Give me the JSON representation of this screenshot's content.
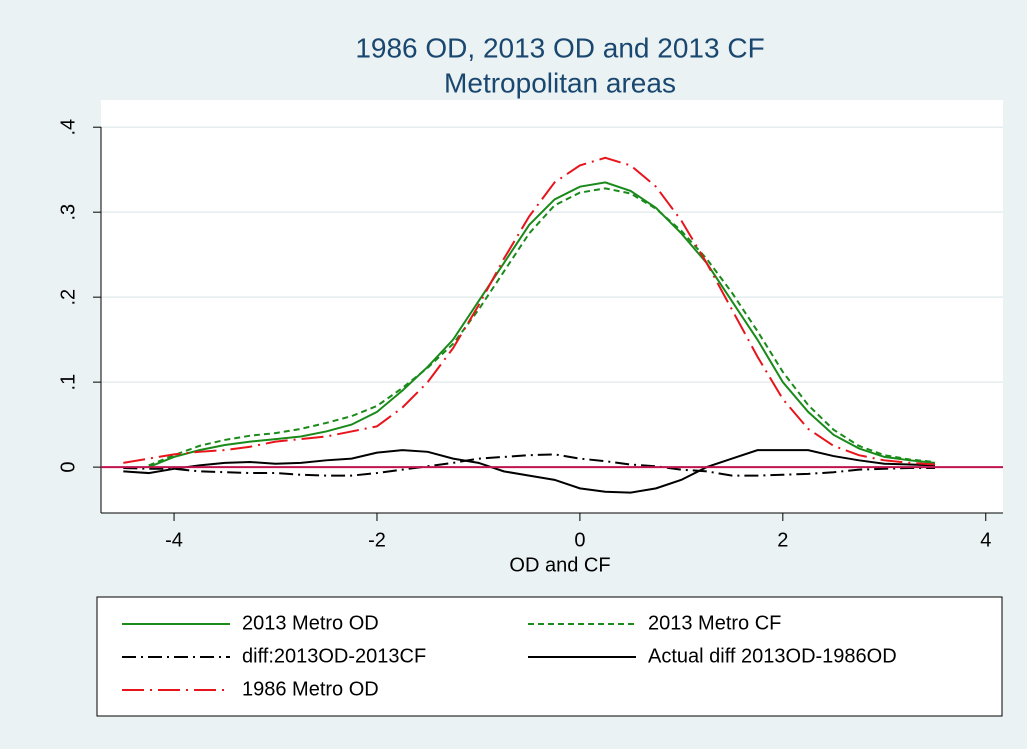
{
  "chart_data": {
    "type": "line",
    "title": "1986 OD, 2013 OD and 2013 CF",
    "subtitle": "Metropolitan areas",
    "x_label": "OD and CF",
    "x": [
      -4.5,
      -4.25,
      -4,
      -3.75,
      -3.5,
      -3.25,
      -3,
      -2.75,
      -2.5,
      -2.25,
      -2,
      -1.75,
      -1.5,
      -1.25,
      -1,
      -0.75,
      -0.5,
      -0.25,
      0,
      0.25,
      0.5,
      0.75,
      1,
      1.25,
      1.5,
      1.75,
      2,
      2.25,
      2.5,
      2.75,
      3,
      3.25,
      3.5
    ],
    "series": [
      {
        "name": "2013 Metro OD",
        "color": "#1a8a1a",
        "dash": "solid",
        "values": [
          null,
          0,
          0.012,
          0.02,
          0.026,
          0.03,
          0.033,
          0.036,
          0.042,
          0.05,
          0.065,
          0.09,
          0.118,
          0.15,
          0.195,
          0.24,
          0.285,
          0.315,
          0.33,
          0.335,
          0.325,
          0.305,
          0.275,
          0.24,
          0.195,
          0.15,
          0.1,
          0.065,
          0.038,
          0.022,
          0.012,
          0.008,
          0.005
        ]
      },
      {
        "name": "2013 Metro CF",
        "color": "#1a8a1a",
        "dash": "dash",
        "values": [
          null,
          0.002,
          0.014,
          0.025,
          0.032,
          0.037,
          0.04,
          0.045,
          0.052,
          0.06,
          0.072,
          0.093,
          0.117,
          0.145,
          0.185,
          0.23,
          0.275,
          0.308,
          0.323,
          0.328,
          0.322,
          0.304,
          0.278,
          0.245,
          0.205,
          0.16,
          0.112,
          0.073,
          0.044,
          0.025,
          0.014,
          0.009,
          0.006
        ]
      },
      {
        "name": "diff:2013OD-2013CF",
        "color": "#000000",
        "dash": "dash-dot",
        "values": [
          -0.001,
          -0.002,
          -0.002,
          -0.005,
          -0.006,
          -0.007,
          -0.007,
          -0.009,
          -0.01,
          -0.01,
          -0.007,
          -0.003,
          0.001,
          0.005,
          0.01,
          0.012,
          0.014,
          0.015,
          0.01,
          0.007,
          0.003,
          0.001,
          -0.003,
          -0.005,
          -0.01,
          -0.01,
          -0.009,
          -0.008,
          -0.006,
          -0.003,
          -0.002,
          -0.001,
          -0.001
        ]
      },
      {
        "name": "Actual diff 2013OD-1986OD",
        "color": "#000000",
        "dash": "solid",
        "values": [
          -0.005,
          -0.007,
          -0.002,
          0.002,
          0.005,
          0.006,
          0.004,
          0.005,
          0.008,
          0.01,
          0.017,
          0.02,
          0.018,
          0.01,
          0.005,
          -0.005,
          -0.01,
          -0.015,
          -0.025,
          -0.029,
          -0.03,
          -0.025,
          -0.015,
          0,
          0.01,
          0.02,
          0.02,
          0.02,
          0.013,
          0.008,
          0.004,
          0.003,
          0.002
        ]
      },
      {
        "name": "1986 Metro OD",
        "color": "#e8141c",
        "dash": "long-dash-dot",
        "values": [
          0.005,
          0.01,
          0.015,
          0.018,
          0.02,
          0.024,
          0.03,
          0.033,
          0.036,
          0.042,
          0.048,
          0.07,
          0.1,
          0.14,
          0.19,
          0.245,
          0.295,
          0.335,
          0.355,
          0.364,
          0.355,
          0.33,
          0.29,
          0.24,
          0.185,
          0.13,
          0.08,
          0.045,
          0.025,
          0.014,
          0.008,
          0.005,
          0.003
        ]
      }
    ],
    "xlim": [
      -4.72,
      4.17
    ],
    "xticks": [
      -4,
      -2,
      0,
      2,
      4
    ],
    "ylim": [
      -0.054,
      0.432
    ],
    "yticks": [
      0,
      {
        "value": 0.1,
        "label": ".1"
      },
      {
        "value": 0.2,
        "label": ".2"
      },
      {
        "value": 0.3,
        "label": ".3"
      },
      {
        "value": 0.4,
        "label": ".4"
      }
    ],
    "grid": true,
    "reference_line": {
      "value": 0,
      "color": "#c0134f"
    },
    "legend": "bottom"
  }
}
